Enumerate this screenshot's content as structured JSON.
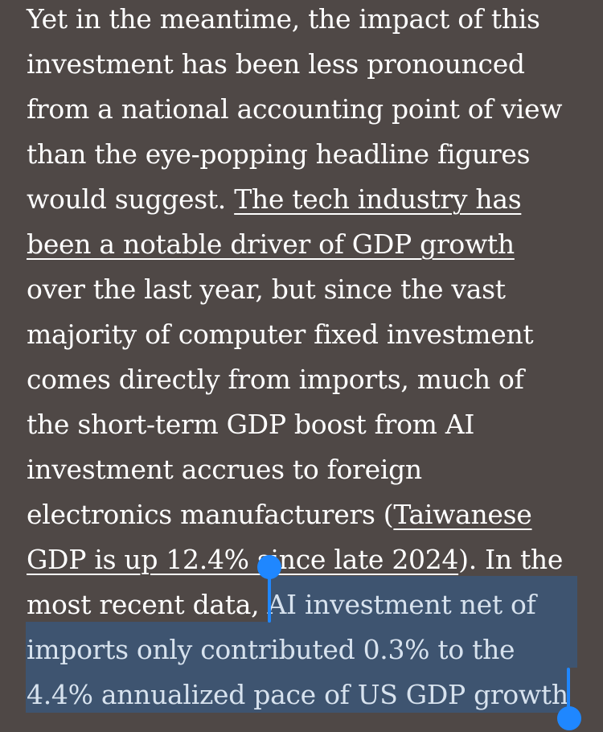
{
  "article": {
    "line1": "Yet in the meantime, the impact of this",
    "line2": "investment has been less pronounced",
    "line3": "from a national accounting point of view",
    "line4": "than the eye-popping headline figures",
    "line5_text": "would suggest. ",
    "link1_part1": "The tech industry has",
    "link1_part2": "been a notable driver of GDP growth",
    "line7": "over the last year, but since the vast",
    "line8": "majority of computer fixed investment",
    "line9": "comes directly from imports, much of",
    "line10": "the short-term GDP boost from AI",
    "line11": "investment accrues to foreign",
    "line12_text": "electronics manufacturers (",
    "link2_part1": "Taiwanese",
    "link2_part2": "GDP is up 12.4% since late 2024",
    "line13_tail": "). In the",
    "line14_text": "most recent data, ",
    "selected_part1": "AI investment net of",
    "selected_part2": "imports only contributed 0.3% to the",
    "selected_part3": "4.4% annualized pace of US GDP growth"
  },
  "colors": {
    "background": "#4f4846",
    "text": "#ffffff",
    "selection": "#3e5470",
    "selected_text": "#d7e2ee",
    "handle": "#1f87ff"
  }
}
